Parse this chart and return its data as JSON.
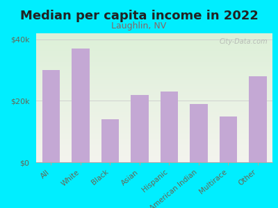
{
  "title": "Median per capita income in 2022",
  "subtitle": "Laughlin, NV",
  "categories": [
    "All",
    "White",
    "Black",
    "Asian",
    "Hispanic",
    "American Indian",
    "Multirace",
    "Other"
  ],
  "values": [
    30000,
    37000,
    14000,
    22000,
    23000,
    19000,
    15000,
    28000
  ],
  "bar_color": "#c4a8d4",
  "background_outer": "#00eeff",
  "gradient_top": "#f4f4ee",
  "gradient_bottom": "#ddf0d8",
  "title_color": "#222222",
  "subtitle_color": "#886666",
  "axis_label_color": "#666655",
  "watermark": "City-Data.com",
  "ylim": [
    0,
    42000
  ],
  "yticks": [
    0,
    20000,
    40000
  ],
  "ytick_labels": [
    "$0",
    "$20k",
    "$40k"
  ],
  "title_fontsize": 13,
  "subtitle_fontsize": 9
}
